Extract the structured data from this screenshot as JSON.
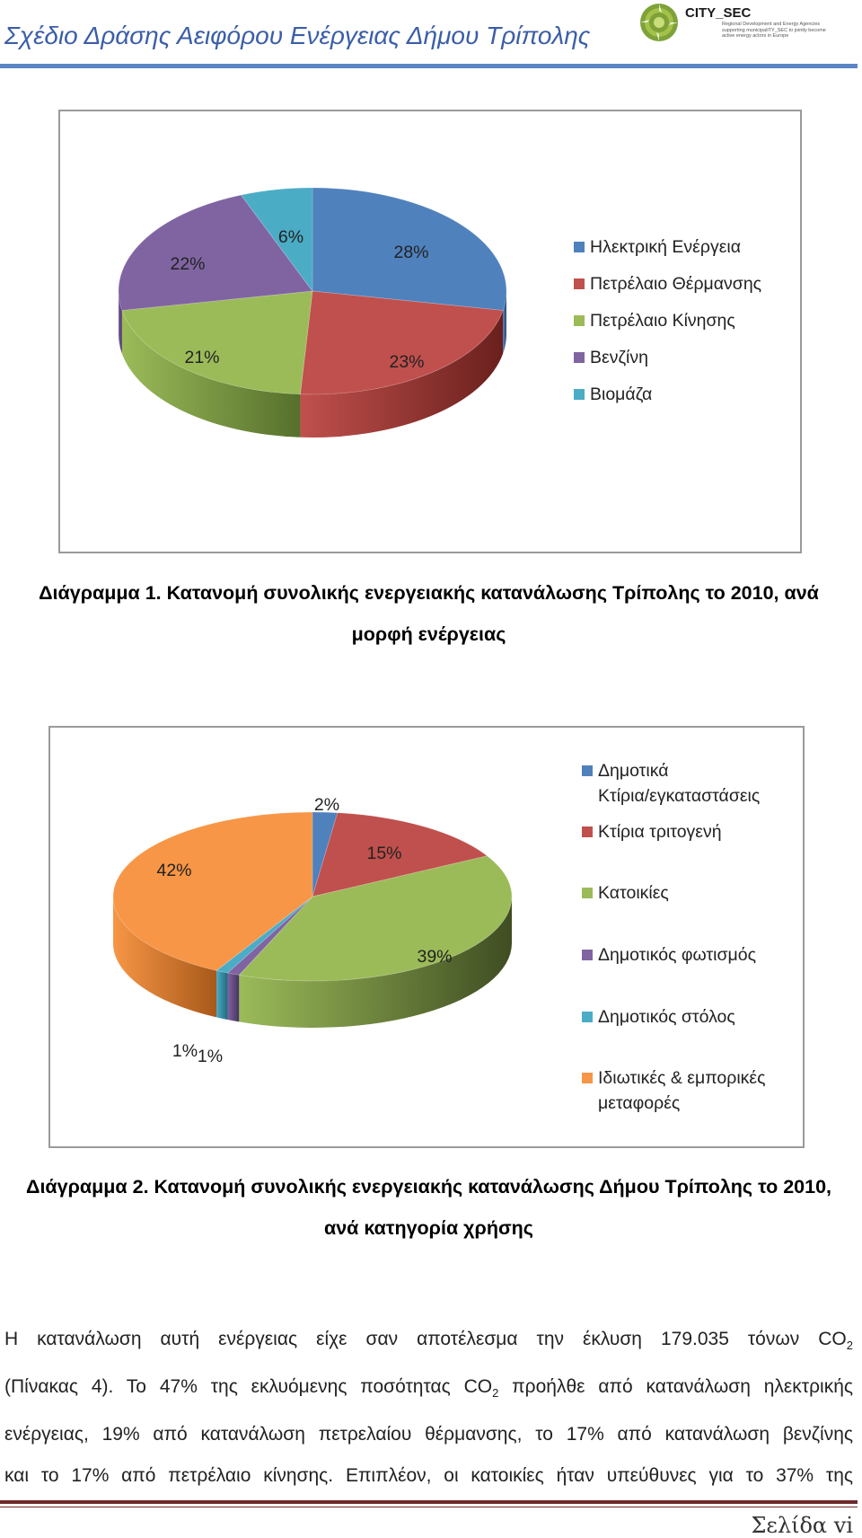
{
  "header": {
    "title": "Σχέδιο Δράσης Αειφόρου Ενέργειας Δήμου Τρίπολης",
    "logo_name": "CITY_SEC",
    "logo_subtitle": "Regional Development and Energy Agencies supporting municipaliTY_SEC to jointly become active energy actors in Europe"
  },
  "chart_data": [
    {
      "type": "pie",
      "title": "",
      "categories": [
        "Ηλεκτρική Ενέργεια",
        "Πετρέλαιο Θέρμανσης",
        "Πετρέλαιο Κίνησης",
        "Βενζίνη",
        "Βιομάζα"
      ],
      "values": [
        28,
        23,
        21,
        22,
        6
      ],
      "labels": [
        "28%",
        "23%",
        "21%",
        "22%",
        "6%"
      ],
      "colors": [
        "#4f81bd",
        "#c0504d",
        "#9bbb59",
        "#8064a2",
        "#4bacc6"
      ],
      "dark_colors": [
        "#2b4a75",
        "#6a201d",
        "#56702c",
        "#46345e",
        "#226a7e"
      ],
      "legend_position": "right"
    },
    {
      "type": "pie",
      "title": "",
      "categories": [
        "Δημοτικά Κτίρια/εγκαταστάσεις",
        "Κτίρια τριτογενή",
        "Κατοικίες",
        "Δημοτικός φωτισμός",
        "Δημοτικός στόλος",
        "Ιδιωτικές & εμπορικές μεταφορές"
      ],
      "legend_lines": [
        [
          "Δημοτικά",
          "Κτίρια/εγκαταστάσεις"
        ],
        [
          "Κτίρια τριτογενή"
        ],
        [
          "Κατοικίες"
        ],
        [
          "Δημοτικός φωτισμός"
        ],
        [
          "Δημοτικός στόλος"
        ],
        [
          "Ιδιωτικές & εμπορικές",
          "μεταφορές"
        ]
      ],
      "values": [
        2,
        15,
        39,
        1,
        1,
        42
      ],
      "labels": [
        "2%",
        "15%",
        "39%",
        "1%",
        "1%",
        "42%"
      ],
      "colors": [
        "#4f81bd",
        "#c0504d",
        "#9bbb59",
        "#8064a2",
        "#4bacc6",
        "#f79646"
      ],
      "dark_colors": [
        "#2b4a75",
        "#6a201d",
        "#3f4d22",
        "#46345e",
        "#226a7e",
        "#a8591a"
      ],
      "legend_position": "right"
    }
  ],
  "captions": {
    "diagram1_line1": "Διάγραμμα 1. Κατανομή συνολικής ενεργειακής κατανάλωσης Τρίπολης το 2010, ανά",
    "diagram1_line2": "μορφή ενέργειας",
    "diagram2_line1": "Διάγραμμα 2. Κατανομή συνολικής ενεργειακής κατανάλωσης Δήμου Τρίπολης το 2010,",
    "diagram2_line2": "ανά κατηγορία χρήσης"
  },
  "body": {
    "line1_text": "Η κατανάλωση αυτή ενέργειας είχε σαν αποτέλεσμα την έκλυση 179.035 τόνων CO",
    "line1_sub": "2",
    "line2_a": "(Πίνακας 4). Το 47% της εκλυόμενης ποσότητας CO",
    "line2_sub": "2",
    "line2_b": " προήλθε από κατανάλωση ηλεκτρικής",
    "line3": "ενέργειας, 19% από κατανάλωση πετρελαίου θέρμανσης, το 17% από κατανάλωση βενζίνης",
    "line4": "και το 17% από πετρέλαιο κίνησης. Επιπλέον, οι κατοικίες ήταν υπεύθυνες για το 37% της"
  },
  "footer": {
    "page_label": "Σελίδα vi"
  }
}
